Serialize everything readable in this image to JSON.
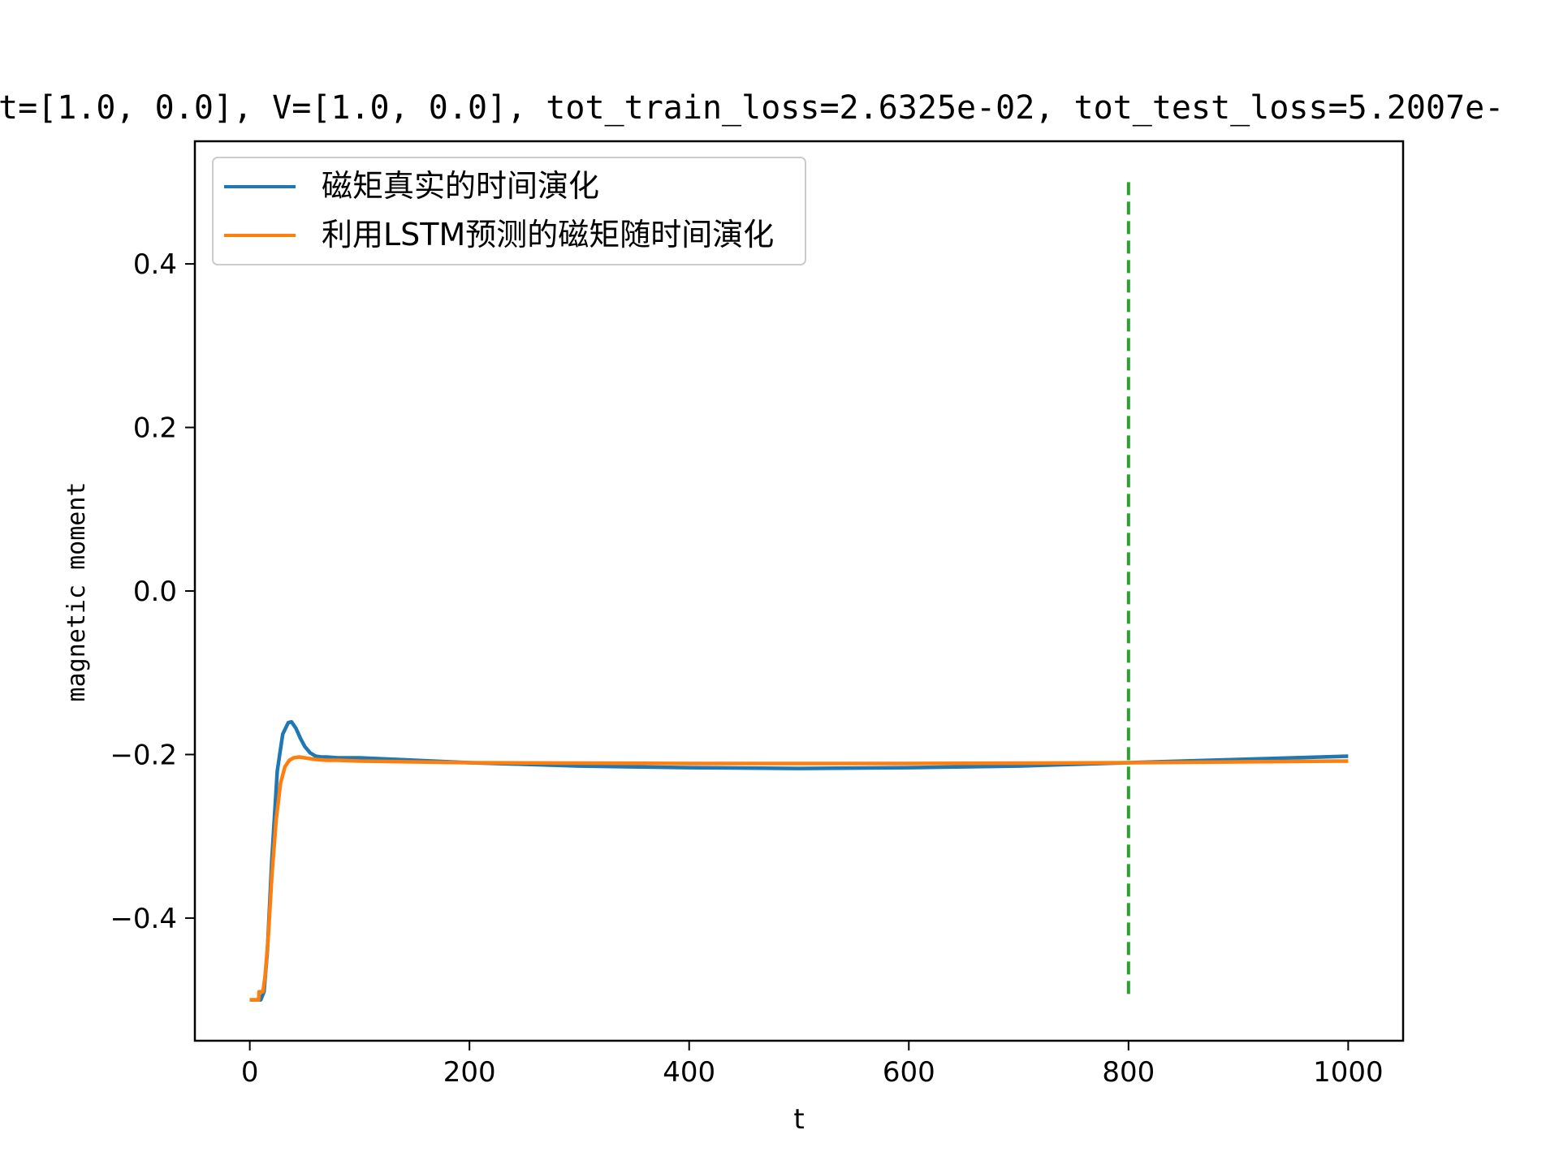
{
  "colors": {
    "true_series": "#1f77b4",
    "pred_series": "#ff7f0e",
    "divider": "#2ca02c",
    "axes": "#000000",
    "legend_border": "#cccccc"
  },
  "chart_data": {
    "type": "line",
    "title": "t=[1.0, 0.0], V=[1.0, 0.0], tot_train_loss=2.6325e-02, tot_test_loss=5.2007e-",
    "xlabel": "t",
    "ylabel": "magnetic moment",
    "xlim": [
      -50,
      1050
    ],
    "ylim": [
      -0.55,
      0.55
    ],
    "xticks": [
      0,
      200,
      400,
      600,
      800,
      1000
    ],
    "xtick_labels": [
      "0",
      "200",
      "400",
      "600",
      "800",
      "1000"
    ],
    "yticks": [
      0.4,
      0.2,
      0.0,
      -0.2,
      -0.4
    ],
    "ytick_labels": [
      "0.4",
      "0.2",
      "0.0",
      "−0.2",
      "−0.4"
    ],
    "grid": false,
    "legend_position": "upper-left",
    "series": [
      {
        "name": "磁矩真实的时间演化",
        "color": "#1f77b4",
        "x": [
          0,
          5,
          10,
          13,
          16,
          20,
          25,
          30,
          35,
          38,
          42,
          46,
          50,
          55,
          60,
          65,
          70,
          80,
          100,
          150,
          200,
          250,
          300,
          400,
          500,
          600,
          700,
          800,
          900,
          1000
        ],
        "y": [
          -0.5,
          -0.5,
          -0.5,
          -0.49,
          -0.44,
          -0.33,
          -0.22,
          -0.175,
          -0.161,
          -0.16,
          -0.168,
          -0.18,
          -0.19,
          -0.198,
          -0.202,
          -0.203,
          -0.203,
          -0.204,
          -0.204,
          -0.207,
          -0.21,
          -0.212,
          -0.214,
          -0.216,
          -0.217,
          -0.216,
          -0.214,
          -0.21,
          -0.206,
          -0.202
        ]
      },
      {
        "name": "利用LSTM预测的磁矩随时间演化",
        "color": "#ff7f0e",
        "x": [
          0,
          5,
          8,
          8.5,
          12,
          14,
          17,
          20,
          24,
          28,
          32,
          36,
          40,
          45,
          50,
          60,
          70,
          80,
          100,
          200,
          400,
          600,
          800,
          1000
        ],
        "y": [
          -0.5,
          -0.5,
          -0.5,
          -0.49,
          -0.49,
          -0.47,
          -0.42,
          -0.35,
          -0.28,
          -0.235,
          -0.215,
          -0.207,
          -0.204,
          -0.203,
          -0.204,
          -0.206,
          -0.207,
          -0.207,
          -0.208,
          -0.21,
          -0.211,
          -0.211,
          -0.21,
          -0.208
        ]
      }
    ],
    "vline": {
      "x": 800,
      "ymin": -0.5,
      "ymax": 0.5,
      "style": "dashed",
      "color": "#2ca02c"
    }
  }
}
